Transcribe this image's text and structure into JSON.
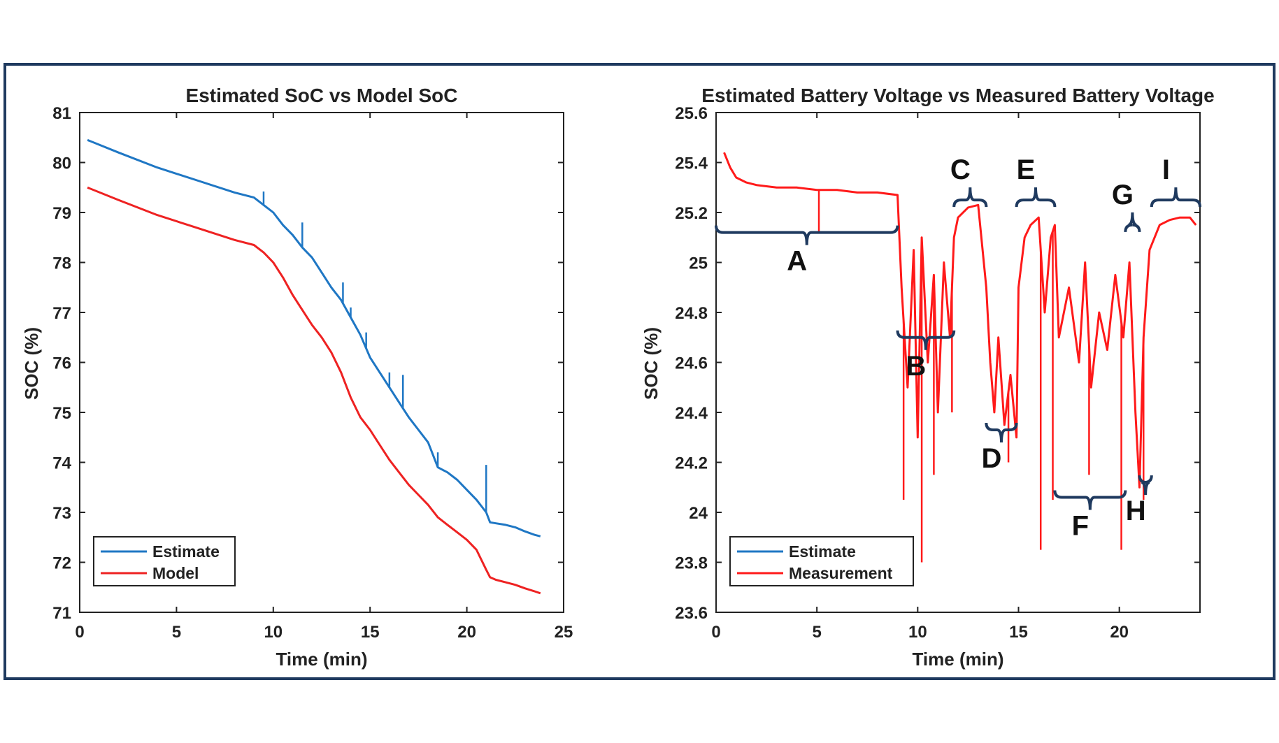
{
  "chart_data": [
    {
      "type": "line",
      "title": "Estimated SoC vs Model SoC",
      "xlabel": "Time (min)",
      "ylabel": "SOC (%)",
      "xlim": [
        0,
        25
      ],
      "ylim": [
        71,
        81
      ],
      "xticks": [
        0,
        5,
        10,
        15,
        20,
        25
      ],
      "yticks": [
        71,
        72,
        73,
        74,
        75,
        76,
        77,
        78,
        79,
        80,
        81
      ],
      "legend": {
        "placement": "bottom-left",
        "entries": [
          "Estimate",
          "Model"
        ]
      },
      "series": [
        {
          "name": "Estimate",
          "color": "#1f77c4",
          "x": [
            0.4,
            2,
            4,
            6,
            8,
            9.0,
            9.5,
            10.0,
            10.5,
            11.0,
            11.5,
            12.0,
            12.5,
            13.0,
            13.5,
            14.0,
            14.5,
            15.0,
            15.5,
            16.0,
            16.5,
            17.0,
            17.5,
            18.0,
            18.5,
            19.0,
            19.5,
            20.0,
            20.5,
            21.0,
            21.2,
            21.5,
            22.0,
            22.5,
            23.0,
            23.5,
            23.8
          ],
          "y": [
            80.45,
            80.2,
            79.9,
            79.65,
            79.4,
            79.3,
            79.15,
            79.0,
            78.75,
            78.55,
            78.3,
            78.1,
            77.8,
            77.5,
            77.25,
            76.9,
            76.55,
            76.1,
            75.8,
            75.5,
            75.2,
            74.9,
            74.65,
            74.4,
            73.9,
            73.8,
            73.65,
            73.45,
            73.25,
            73.0,
            72.8,
            72.78,
            72.75,
            72.7,
            72.62,
            72.55,
            72.52
          ],
          "spikes": [
            {
              "x": 9.5,
              "y": 79.42
            },
            {
              "x": 11.5,
              "y": 78.8
            },
            {
              "x": 13.6,
              "y": 77.6
            },
            {
              "x": 14.0,
              "y": 77.1
            },
            {
              "x": 14.8,
              "y": 76.6
            },
            {
              "x": 16.0,
              "y": 75.8
            },
            {
              "x": 16.7,
              "y": 75.75
            },
            {
              "x": 18.5,
              "y": 74.2
            },
            {
              "x": 21.0,
              "y": 73.95
            }
          ]
        },
        {
          "name": "Model",
          "color": "#ee2222",
          "x": [
            0.4,
            2,
            4,
            6,
            8,
            9.0,
            9.5,
            10.0,
            10.5,
            11.0,
            11.5,
            12.0,
            12.5,
            13.0,
            13.5,
            14.0,
            14.5,
            15.0,
            15.5,
            16.0,
            16.5,
            17.0,
            17.5,
            18.0,
            18.5,
            19.0,
            19.5,
            20.0,
            20.5,
            21.0,
            21.2,
            21.5,
            22.0,
            22.5,
            23.0,
            23.5,
            23.8
          ],
          "y": [
            79.5,
            79.25,
            78.95,
            78.7,
            78.45,
            78.35,
            78.2,
            78.0,
            77.7,
            77.35,
            77.05,
            76.75,
            76.5,
            76.2,
            75.8,
            75.3,
            74.9,
            74.65,
            74.35,
            74.05,
            73.8,
            73.55,
            73.35,
            73.15,
            72.9,
            72.75,
            72.6,
            72.45,
            72.25,
            71.85,
            71.7,
            71.65,
            71.6,
            71.55,
            71.48,
            71.42,
            71.38
          ]
        }
      ]
    },
    {
      "type": "line",
      "title": "Estimated Battery Voltage vs Measured Battery Voltage",
      "xlabel": "Time (min)",
      "ylabel": "SOC (%)",
      "xlim": [
        0,
        24
      ],
      "ylim": [
        23.6,
        25.6
      ],
      "xticks": [
        0,
        5,
        10,
        15,
        20
      ],
      "yticks": [
        23.6,
        23.8,
        24,
        24.2,
        24.4,
        24.6,
        24.8,
        25,
        25.2,
        25.4,
        25.6
      ],
      "ytick_labels": [
        "23.6",
        "23.8",
        "24",
        "24.2",
        "24.4",
        "24.6",
        "24.8",
        "25",
        "25.2",
        "25.4",
        "25.6"
      ],
      "legend": {
        "placement": "bottom-left",
        "entries": [
          "Estimate",
          "Measurement"
        ]
      },
      "series": [
        {
          "name": "Estimate",
          "color": "#1f77c4",
          "x": [],
          "y": []
        },
        {
          "name": "Measurement",
          "color": "#ff1a1a",
          "x": [
            0.4,
            0.7,
            1.0,
            1.5,
            2,
            3,
            4,
            5,
            6,
            7,
            8,
            9.0,
            9.2,
            9.5,
            9.8,
            10.0,
            10.2,
            10.5,
            10.8,
            11.0,
            11.3,
            11.6,
            11.8,
            12.0,
            12.5,
            13.0,
            13.4,
            13.6,
            13.8,
            14.0,
            14.3,
            14.6,
            14.9,
            15.0,
            15.3,
            15.6,
            16.0,
            16.3,
            16.6,
            16.8,
            17.0,
            17.5,
            18.0,
            18.3,
            18.6,
            19.0,
            19.4,
            19.8,
            20.2,
            20.5,
            20.8,
            21.0,
            21.2,
            21.5,
            22.0,
            22.5,
            23.0,
            23.5,
            23.8
          ],
          "y": [
            25.44,
            25.38,
            25.34,
            25.32,
            25.31,
            25.3,
            25.3,
            25.29,
            25.29,
            25.28,
            25.28,
            25.27,
            24.9,
            24.5,
            25.05,
            24.3,
            25.1,
            24.6,
            24.95,
            24.4,
            25.0,
            24.7,
            25.1,
            25.18,
            25.22,
            25.23,
            24.9,
            24.6,
            24.4,
            24.7,
            24.35,
            24.55,
            24.3,
            24.9,
            25.1,
            25.15,
            25.18,
            24.8,
            25.1,
            25.15,
            24.7,
            24.9,
            24.6,
            25.0,
            24.5,
            24.8,
            24.65,
            24.95,
            24.7,
            25.0,
            24.4,
            24.1,
            24.7,
            25.05,
            25.15,
            25.17,
            25.18,
            25.18,
            25.15
          ],
          "spikes": [
            {
              "x": 9.3,
              "y": 24.05
            },
            {
              "x": 10.2,
              "y": 23.8
            },
            {
              "x": 10.8,
              "y": 24.15
            },
            {
              "x": 11.7,
              "y": 24.4
            },
            {
              "x": 5.1,
              "y": 25.12
            },
            {
              "x": 14.5,
              "y": 24.2
            },
            {
              "x": 16.1,
              "y": 23.85
            },
            {
              "x": 16.7,
              "y": 24.05
            },
            {
              "x": 18.5,
              "y": 24.15
            },
            {
              "x": 20.1,
              "y": 23.85
            },
            {
              "x": 21.2,
              "y": 24.05
            }
          ]
        }
      ],
      "annotations": [
        {
          "label": "A",
          "x_range": [
            0,
            9.0
          ],
          "y": 25.12,
          "side": "below"
        },
        {
          "label": "B",
          "x_range": [
            9.0,
            11.8
          ],
          "y": 24.7,
          "side": "below"
        },
        {
          "label": "C",
          "x_range": [
            11.8,
            13.4
          ],
          "y": 25.25,
          "side": "above"
        },
        {
          "label": "D",
          "x_range": [
            13.4,
            14.9
          ],
          "y": 24.33,
          "side": "below"
        },
        {
          "label": "E",
          "x_range": [
            14.9,
            16.8
          ],
          "y": 25.25,
          "side": "above"
        },
        {
          "label": "F",
          "x_range": [
            16.8,
            20.3
          ],
          "y": 24.06,
          "side": "below"
        },
        {
          "label": "G",
          "x_range": [
            20.3,
            21.0
          ],
          "y": 25.15,
          "side": "above"
        },
        {
          "label": "H",
          "x_range": [
            21.0,
            21.6
          ],
          "y": 24.12,
          "side": "below"
        },
        {
          "label": "I",
          "x_range": [
            21.6,
            24.0
          ],
          "y": 25.25,
          "side": "above"
        }
      ]
    }
  ]
}
